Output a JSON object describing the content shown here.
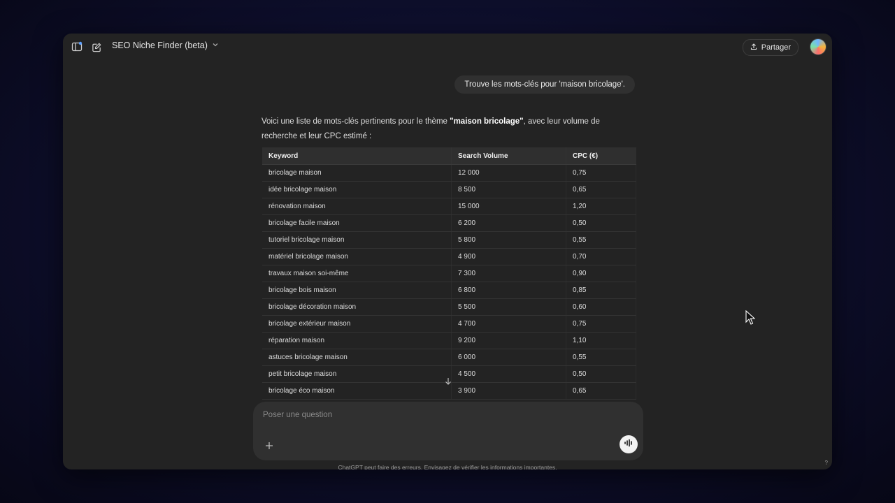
{
  "header": {
    "model_title": "SEO Niche Finder (beta)",
    "share_label": "Partager",
    "icons": [
      "sidebar-toggle-icon",
      "new-chat-icon",
      "chevron-down-icon",
      "share-icon"
    ]
  },
  "conversation": {
    "user_message": "Trouve les mots-clés pour 'maison bricolage'.",
    "assistant_intro_before": "Voici une liste de mots-clés pertinents pour le thème ",
    "assistant_intro_bold": "\"maison bricolage\"",
    "assistant_intro_after": ", avec leur volume de recherche et leur CPC estimé :",
    "table": {
      "headers": [
        "Keyword",
        "Search Volume",
        "CPC (€)"
      ],
      "rows": [
        [
          "bricolage maison",
          "12 000",
          "0,75"
        ],
        [
          "idée bricolage maison",
          "8 500",
          "0,65"
        ],
        [
          "rénovation maison",
          "15 000",
          "1,20"
        ],
        [
          "bricolage facile maison",
          "6 200",
          "0,50"
        ],
        [
          "tutoriel bricolage maison",
          "5 800",
          "0,55"
        ],
        [
          "matériel bricolage maison",
          "4 900",
          "0,70"
        ],
        [
          "travaux maison soi-même",
          "7 300",
          "0,90"
        ],
        [
          "bricolage bois maison",
          "6 800",
          "0,85"
        ],
        [
          "bricolage décoration maison",
          "5 500",
          "0,60"
        ],
        [
          "bricolage extérieur maison",
          "4 700",
          "0,75"
        ],
        [
          "réparation maison",
          "9 200",
          "1,10"
        ],
        [
          "astuces bricolage maison",
          "6 000",
          "0,55"
        ],
        [
          "petit bricolage maison",
          "4 500",
          "0,50"
        ],
        [
          "bricolage éco maison",
          "3 900",
          "0,65"
        ]
      ]
    }
  },
  "composer": {
    "placeholder": "Poser une question"
  },
  "footer": {
    "disclaimer": "ChatGPT peut faire des erreurs. Envisagez de vérifier les informations importantes.",
    "help_label": "?"
  }
}
